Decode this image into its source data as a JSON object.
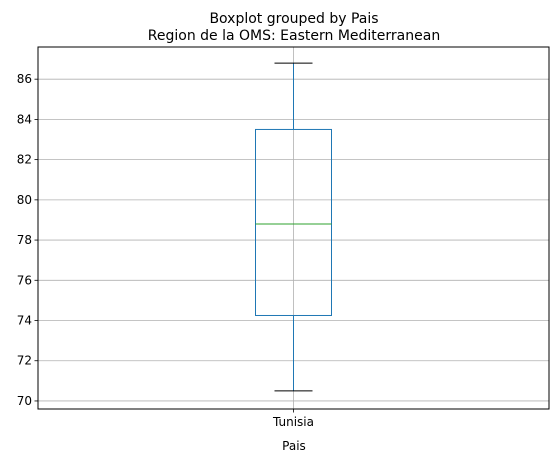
{
  "chart_data": {
    "type": "boxplot",
    "suptitle": "Boxplot grouped by Pais",
    "title": "Region de la OMS: Eastern Mediterranean",
    "xlabel": "Pais",
    "ylabel": "",
    "categories": [
      "Tunisia"
    ],
    "boxes": [
      {
        "category": "Tunisia",
        "whisker_low": 70.5,
        "q1": 74.25,
        "median": 78.8,
        "q3": 83.5,
        "whisker_high": 86.8
      }
    ],
    "ylim": [
      69.6,
      87.6
    ],
    "yticks": [
      70,
      72,
      74,
      76,
      78,
      80,
      82,
      84,
      86
    ],
    "grid": true,
    "colors": {
      "box": "#1f77b4",
      "median": "#2ca02c",
      "cap": "#000000",
      "grid": "#b0b0b0"
    }
  }
}
